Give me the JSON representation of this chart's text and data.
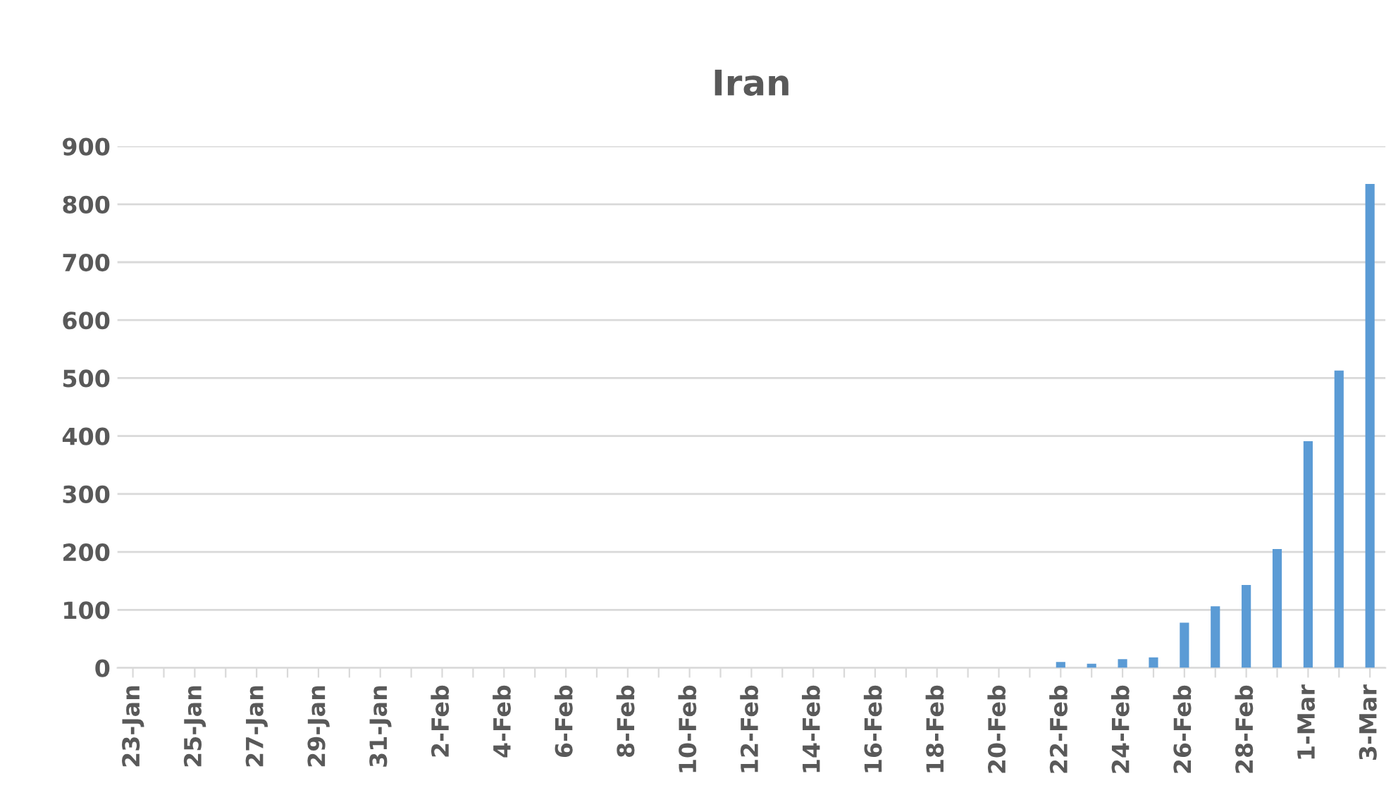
{
  "chart_data": {
    "type": "bar",
    "title": "Iran",
    "categories": [
      "23-Jan",
      null,
      "25-Jan",
      null,
      "27-Jan",
      null,
      "29-Jan",
      null,
      "31-Jan",
      null,
      "2-Feb",
      null,
      "4-Feb",
      null,
      "6-Feb",
      null,
      "8-Feb",
      null,
      "10-Feb",
      null,
      "12-Feb",
      null,
      "14-Feb",
      null,
      "16-Feb",
      null,
      "18-Feb",
      null,
      "20-Feb",
      null,
      "22-Feb",
      null,
      "24-Feb",
      null,
      "26-Feb",
      null,
      "28-Feb",
      null,
      "1-Mar",
      null,
      "3-Mar"
    ],
    "values": [
      0,
      0,
      0,
      0,
      0,
      0,
      0,
      0,
      0,
      0,
      0,
      0,
      0,
      0,
      0,
      0,
      0,
      0,
      0,
      0,
      0,
      0,
      0,
      0,
      0,
      0,
      0,
      0,
      0,
      0,
      10,
      7,
      15,
      18,
      78,
      106,
      143,
      205,
      391,
      513,
      835
    ],
    "color": "#5b9bd5",
    "ylim": [
      0,
      900
    ],
    "yticks": [
      0,
      100,
      200,
      300,
      400,
      500,
      600,
      700,
      800,
      900
    ],
    "grid": "y"
  }
}
